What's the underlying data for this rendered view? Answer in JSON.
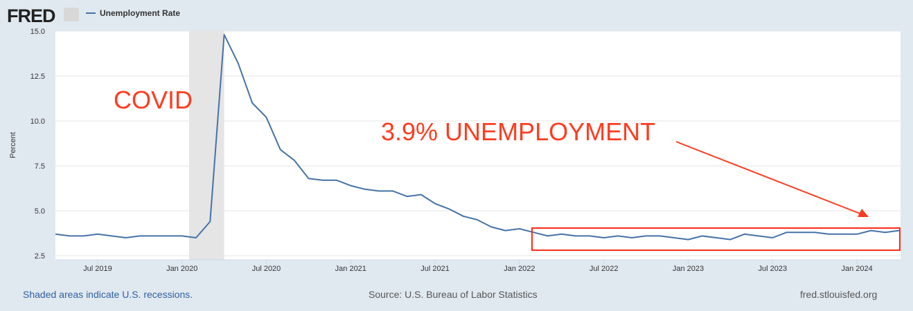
{
  "header": {
    "logo": "FRED",
    "legend": "Unemployment Rate"
  },
  "chart_data": {
    "type": "line",
    "title": "Unemployment Rate",
    "ylabel": "Percent",
    "xlabel": "",
    "ylim": [
      2.5,
      15.0
    ],
    "yticks": [
      "2.5",
      "5.0",
      "7.5",
      "10.0",
      "12.5",
      "15.0"
    ],
    "start": "2019-04",
    "freq": "monthly",
    "xticks": [
      {
        "label": "Jul 2019",
        "i": 3
      },
      {
        "label": "Jan 2020",
        "i": 9
      },
      {
        "label": "Jul 2020",
        "i": 15
      },
      {
        "label": "Jan 2021",
        "i": 21
      },
      {
        "label": "Jul 2021",
        "i": 27
      },
      {
        "label": "Jan 2022",
        "i": 33
      },
      {
        "label": "Jul 2022",
        "i": 39
      },
      {
        "label": "Jan 2023",
        "i": 45
      },
      {
        "label": "Jul 2023",
        "i": 51
      },
      {
        "label": "Jan 2024",
        "i": 57
      }
    ],
    "recession": [
      10,
      12
    ],
    "series": [
      {
        "name": "Unemployment Rate",
        "color": "#4572a7",
        "values": [
          3.7,
          3.6,
          3.6,
          3.7,
          3.6,
          3.5,
          3.6,
          3.6,
          3.6,
          3.6,
          3.5,
          4.4,
          14.8,
          13.2,
          11.0,
          10.2,
          8.4,
          7.8,
          6.8,
          6.7,
          6.7,
          6.4,
          6.2,
          6.1,
          6.1,
          5.8,
          5.9,
          5.4,
          5.1,
          4.7,
          4.5,
          4.1,
          3.9,
          4.0,
          3.8,
          3.6,
          3.7,
          3.6,
          3.6,
          3.5,
          3.6,
          3.5,
          3.6,
          3.6,
          3.5,
          3.4,
          3.6,
          3.5,
          3.4,
          3.7,
          3.6,
          3.5,
          3.8,
          3.8,
          3.8,
          3.7,
          3.7,
          3.7,
          3.9,
          3.8,
          3.9
        ]
      }
    ],
    "annotations": [
      "COVID",
      "3.9% UNEMPLOYMENT"
    ]
  },
  "footer": {
    "left": "Shaded areas indicate U.S. recessions.",
    "center": "Source: U.S. Bureau of Labor Statistics",
    "right": "fred.stlouisfed.org"
  }
}
